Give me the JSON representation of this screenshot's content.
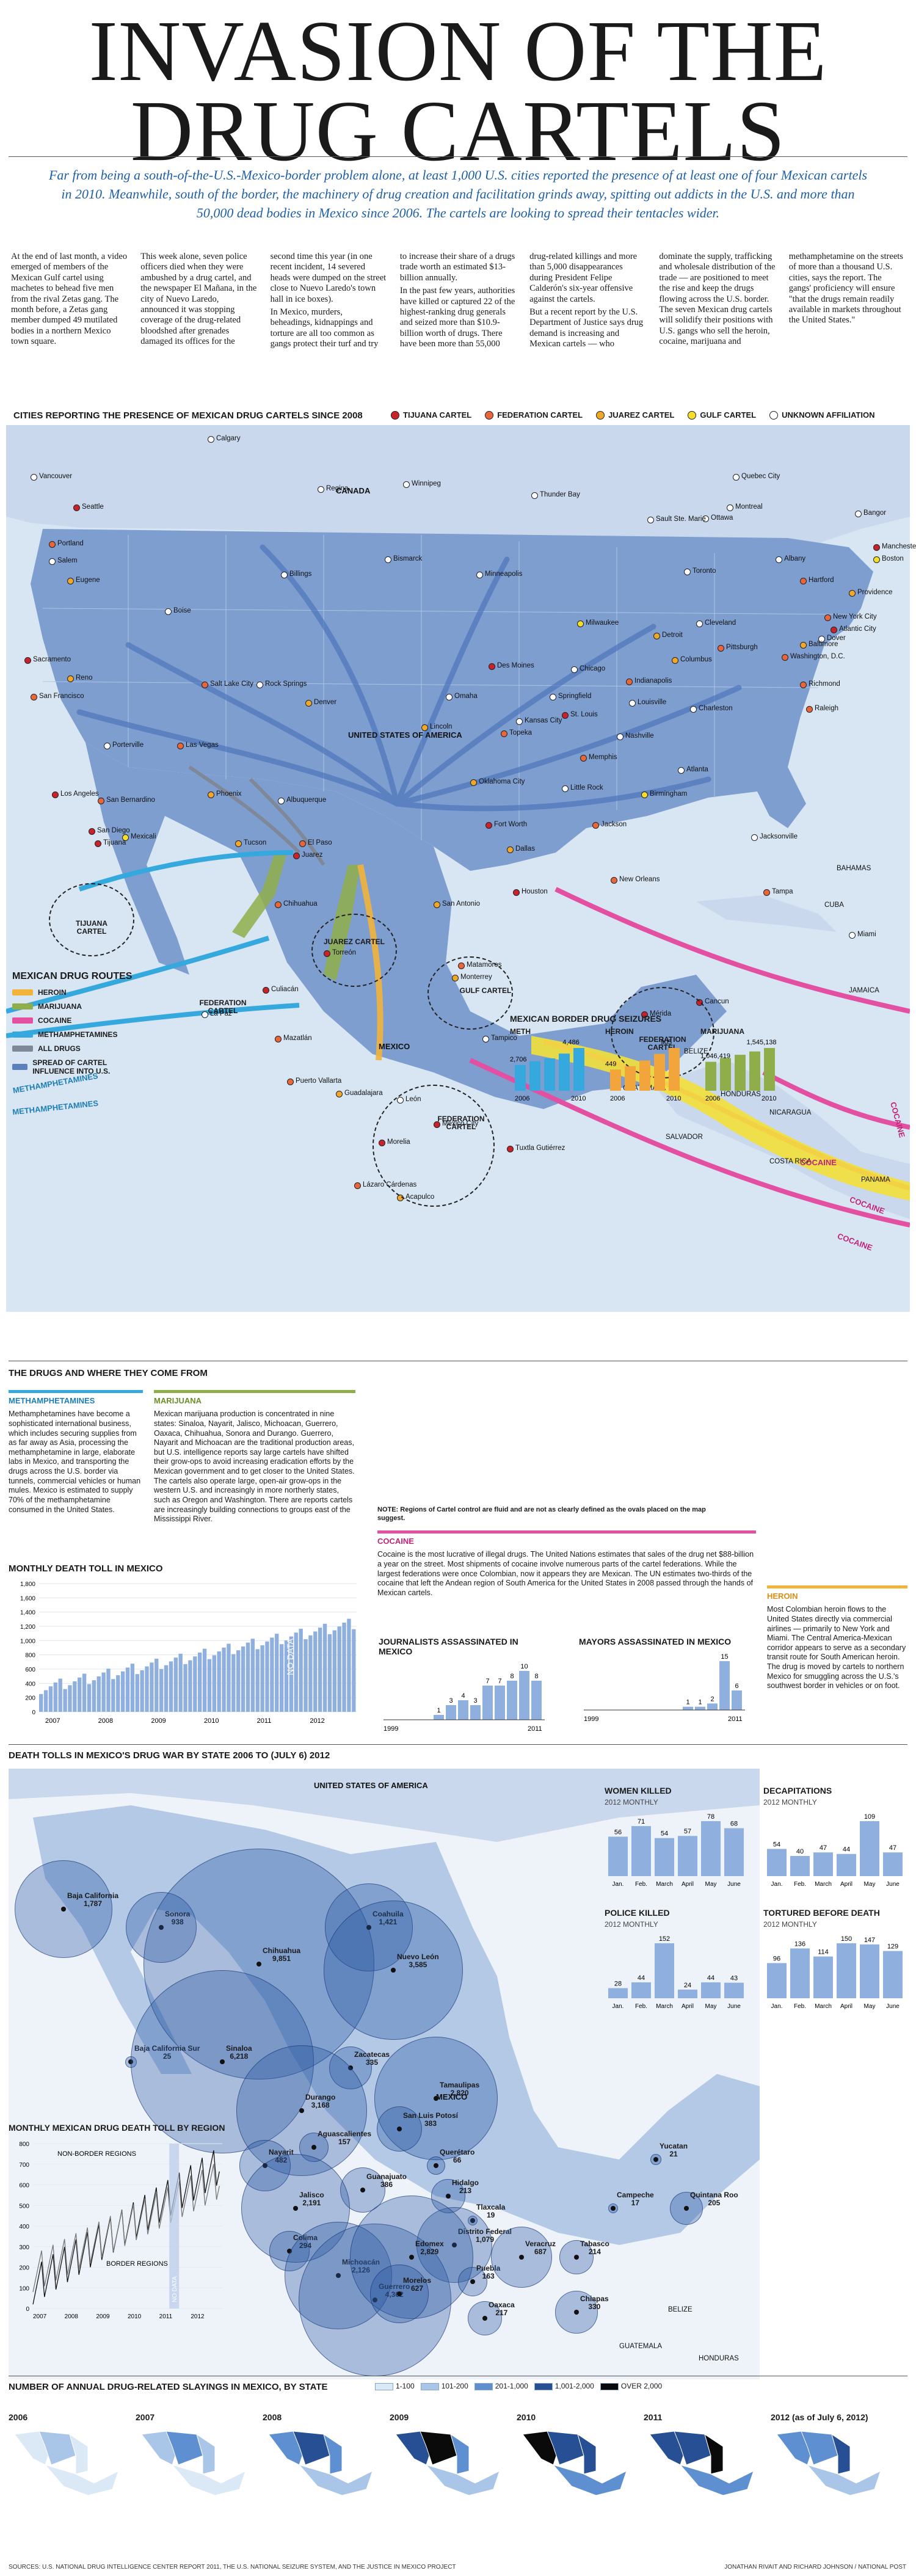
{
  "title_line1": "INVASION OF THE",
  "title_line2": "DRUG CARTELS",
  "subtitle": "Far from being a south-of-the-U.S.-Mexico-border problem alone, at least 1,000 U.S. cities reported the presence of at least one of four Mexican cartels in 2010. Meanwhile, south of the border, the machinery of drug creation and facilitation grinds away, spitting out addicts in the U.S. and more than 50,000 dead bodies in Mexico since 2006. The cartels are looking to spread their tentacles wider.",
  "intro_paragraphs": [
    "At the end of last month, a video emerged of members of the Mexican Gulf cartel using machetes to behead five men from the rival Zetas gang. The month before, a Zetas gang member dumped 49 mutilated bodies in a northern Mexico town square.",
    "This week alone, seven police officers died when they were ambushed by a drug cartel, and the newspaper El Mañana, in the city of Nuevo Laredo, announced it was stopping coverage of the drug-related bloodshed after grenades damaged its offices for the second time this year (in one recent incident, 14 severed heads were dumped on the street close to Nuevo Laredo's town hall in ice boxes).",
    "In Mexico, murders, beheadings, kidnappings and torture are all too common as gangs protect their turf and try to increase their share of a drugs trade worth an estimated $13-billion annually.",
    "In the past few years, authorities have killed or captured 22 of the highest-ranking drug generals and seized more than $10.9-billion worth of drugs. There have been more than 55,000 drug-related killings and more than 5,000 disappearances during President Felipe Calderón's six-year offensive against the cartels.",
    "But a recent report by the U.S. Department of Justice says drug demand is increasing and Mexican cartels — who dominate the supply, trafficking and wholesale distribution of the trade — are positioned to meet the rise and keep the drugs flowing across the U.S. border. The seven Mexican drug cartels will solidify their positions with U.S. gangs who sell the heroin, cocaine, marijuana and methamphetamine on the streets of more than a thousand U.S. cities, says the report. The gangs' proficiency will ensure \"that the drugs remain readily available in markets throughout the United States.\""
  ],
  "map": {
    "header": "CITIES REPORTING THE PRESENCE OF MEXICAN DRUG CARTELS SINCE 2008",
    "legend": [
      {
        "label": "TIJUANA CARTEL",
        "color": "#c8222a"
      },
      {
        "label": "FEDERATION CARTEL",
        "color": "#e8663a"
      },
      {
        "label": "JUAREZ CARTEL",
        "color": "#f0a82a"
      },
      {
        "label": "GULF CARTEL",
        "color": "#f6de2a"
      },
      {
        "label": "UNKNOWN AFFILIATION",
        "color": "#ffffff"
      }
    ],
    "countries": {
      "canada": "CANADA",
      "usa": "UNITED STATES OF AMERICA",
      "mexico": "MEXICO",
      "cuba": "CUBA",
      "bahamas": "BAHAMAS",
      "jamaica": "JAMAICA",
      "belize": "BELIZE",
      "guatemala": "GUATEMALA",
      "honduras": "HONDURAS",
      "salvador": "SALVADOR",
      "nicaragua": "NICARAGUA",
      "costa_rica": "COSTA RICA",
      "panama": "PANAMA"
    },
    "cities": [
      "Vancouver",
      "Calgary",
      "Regina",
      "Winnipeg",
      "Thunder Bay",
      "Quebec City",
      "Montreal",
      "Ottawa",
      "Bangor",
      "Sault Ste. Marie",
      "Seattle",
      "Portland",
      "Salem",
      "Eugene",
      "Boise",
      "Billings",
      "Bismarck",
      "Minneapolis",
      "Toronto",
      "Albany",
      "Hartford",
      "Providence",
      "Manchester",
      "Boston",
      "New York City",
      "Atlantic City",
      "Dover",
      "Baltimore",
      "Washington, D.C.",
      "Richmond",
      "Sacramento",
      "Reno",
      "San Francisco",
      "Rock Springs",
      "Salt Lake City",
      "Denver",
      "Omaha",
      "Des Moines",
      "Milwaukee",
      "Chicago",
      "Detroit",
      "Cleveland",
      "Pittsburgh",
      "Columbus",
      "Indianapolis",
      "Springfield",
      "Lincoln",
      "St. Louis",
      "Kansas City",
      "Topeka",
      "Louisville",
      "Charleston",
      "Raleigh",
      "Porterville",
      "Las Vegas",
      "Nashville",
      "Memphis",
      "Oklahoma City",
      "Little Rock",
      "Atlanta",
      "Birmingham",
      "Los Angeles",
      "San Bernardino",
      "San Diego",
      "Mexicali",
      "Tijuana",
      "Phoenix",
      "Albuquerque",
      "Tucson",
      "El Paso",
      "Juarez",
      "Fort Worth",
      "Dallas",
      "Jackson",
      "Jacksonville",
      "Houston",
      "New Orleans",
      "San Antonio",
      "Tampa",
      "Miami",
      "Chihuahua",
      "Torreón",
      "Matamoros",
      "Monterrey",
      "Culiacán",
      "La Paz",
      "Mazatlán",
      "Tampico",
      "Puerto Vallarta",
      "Guadalajara",
      "León",
      "Mexico City",
      "Morelia",
      "Lázaro Cárdenas",
      "Acapulco",
      "Tuxtla Gutiérrez",
      "Mérida",
      "Cancun"
    ],
    "cartels": {
      "tijuana": "TIJUANA CARTEL",
      "juarez": "JUAREZ CARTEL",
      "gulf": "GULF CARTEL",
      "federation1": "FEDERATION CARTEL",
      "federation2": "FEDERATION CARTEL",
      "federation3": "FEDERATION CARTEL"
    },
    "route_labels": [
      "METHAMPHETAMINES",
      "METHAMPHETAMINES",
      "COCAINE",
      "COCAINE",
      "COCAINE",
      "COCAINE"
    ]
  },
  "routes_legend": {
    "title": "MEXICAN DRUG ROUTES",
    "items": [
      {
        "label": "HEROIN",
        "color": "#f2b33a"
      },
      {
        "label": "MARIJUANA",
        "color": "#8fae4a"
      },
      {
        "label": "COCAINE",
        "color": "#e34fa1"
      },
      {
        "label": "METHAMPHETAMINES",
        "color": "#35a9dd"
      },
      {
        "label": "ALL DRUGS",
        "color": "#7f8899"
      },
      {
        "label": "SPREAD OF CARTEL INFLUENCE INTO U.S.",
        "color": "#5c7fbd"
      }
    ]
  },
  "seizures": {
    "title": "MEXICAN BORDER DRUG SEIZURES",
    "groups": [
      {
        "label": "METH",
        "first": "2,706",
        "last": "4,486",
        "values": [
          2706,
          3100,
          3400,
          3900,
          4486
        ],
        "color": "#35a9dd"
      },
      {
        "label": "HEROIN",
        "first": "449",
        "last": "905",
        "values": [
          449,
          520,
          640,
          780,
          905
        ],
        "color": "#f2a53a"
      },
      {
        "label": "MARIJUANA",
        "first": "1,046,419",
        "last": "1,545,138",
        "values": [
          1046419,
          1180000,
          1300000,
          1420000,
          1545138
        ],
        "color": "#8fae4a"
      }
    ],
    "years": [
      "2006",
      "2010"
    ]
  },
  "drugs": {
    "title": "THE DRUGS AND WHERE THEY COME FROM",
    "meth_title": "METHAMPHETAMINES",
    "meth_text": "Methamphetamines have become a sophisticated international business, which includes securing supplies from as far away as Asia, processing the methamphetamine in large, elaborate labs in Mexico, and transporting the drugs across the U.S. border via tunnels, commercial vehicles or human mules. Mexico is estimated to supply 70% of the methamphetamine consumed in the United States.",
    "mari_title": "MARIJUANA",
    "mari_text": "Mexican marijuana production is concentrated in nine states: Sinaloa, Nayarit, Jalisco, Michoacan, Guerrero, Oaxaca, Chihuahua, Sonora and Durango. Guerrero, Nayarit and Michoacan are the traditional production areas, but U.S. intelligence reports say large cartels have shifted their grow-ops to avoid increasing eradication efforts by the Mexican government and to get closer to the United States. The cartels also operate large, open-air grow-ops in the western U.S. and increasingly in more northerly states, such as Oregon and Washington. There are reports cartels are increasingly building connections to groups east of the Mississippi River.",
    "note": "NOTE: Regions of Cartel control are fluid and are not as clearly defined as the ovals placed on the map suggest.",
    "cocaine_title": "COCAINE",
    "cocaine_text": "Cocaine is the most lucrative of illegal drugs. The United Nations estimates that sales of the drug net $88-billion a year on the street. Most shipments of cocaine involve numerous parts of the cartel federations. While the largest federations were once Colombian, now it appears they are Mexican. The UN estimates two-thirds of the cocaine that left the Andean region of South America for the United States in 2008 passed through the hands of Mexican cartels.",
    "heroin_title": "HEROIN",
    "heroin_text": "Most Colombian heroin flows to the United States directly via commercial airlines — primarily to New York and Miami. The Central America-Mexican corridor appears to serve as a secondary transit route for South American heroin. The drug is moved by cartels to northern Mexico for smuggling across the U.S.'s southwest border in vehicles or on foot."
  },
  "monthly_death": {
    "title": "MONTHLY DEATH TOLL IN MEXICO",
    "y_ticks": [
      "1,800",
      "1,600",
      "1,400",
      "1,200",
      "1,000",
      "800",
      "600",
      "400",
      "200",
      "0"
    ],
    "x_labels": [
      "2007",
      "2008",
      "2009",
      "2010",
      "2011",
      "2012"
    ],
    "no_data": "NO DATA"
  },
  "journalists": {
    "title": "JOURNALISTS ASSASSINATED IN MEXICO",
    "labels": [
      "1",
      "3",
      "4",
      "3",
      "7",
      "7",
      "8",
      "10",
      "8"
    ],
    "x_start": "1999",
    "x_end": "2011"
  },
  "mayors": {
    "title": "MAYORS ASSASSINATED IN MEXICO",
    "labels": [
      "1",
      "1",
      "2",
      "15",
      "6"
    ],
    "x_start": "1999",
    "x_end": "2011"
  },
  "death_tolls": {
    "title": "DEATH TOLLS IN MEXICO'S DRUG WAR BY STATE 2006 TO (JULY 6) 2012",
    "usa_label": "UNITED STATES OF AMERICA",
    "mexico_label": "MEXICO",
    "belize_label": "BELIZE",
    "guatemala_label": "GUATEMALA",
    "honduras_label": "HONDURAS",
    "states": [
      {
        "name": "Baja California",
        "value": "1,787"
      },
      {
        "name": "Sonora",
        "value": "938"
      },
      {
        "name": "Chihuahua",
        "value": "9,851"
      },
      {
        "name": "Coahuila",
        "value": "1,421"
      },
      {
        "name": "Nuevo León",
        "value": "3,585"
      },
      {
        "name": "Baja California Sur",
        "value": "25"
      },
      {
        "name": "Sinaloa",
        "value": "6,218"
      },
      {
        "name": "Zacatecas",
        "value": "335"
      },
      {
        "name": "Durango",
        "value": "3,168"
      },
      {
        "name": "Tamaulipas",
        "value": "2,820"
      },
      {
        "name": "San Luis Potosí",
        "value": "383"
      },
      {
        "name": "Querétaro",
        "value": "66"
      },
      {
        "name": "Hidalgo",
        "value": "213"
      },
      {
        "name": "Tlaxcala",
        "value": "19"
      },
      {
        "name": "Distrito Federal",
        "value": "1,079"
      },
      {
        "name": "Aguascalientes",
        "value": "157"
      },
      {
        "name": "Nayarit",
        "value": "482"
      },
      {
        "name": "Guanajuato",
        "value": "386"
      },
      {
        "name": "Jalisco",
        "value": "2,191"
      },
      {
        "name": "Colima",
        "value": "294"
      },
      {
        "name": "Michoacán",
        "value": "2,126"
      },
      {
        "name": "Guerrero",
        "value": "4,362"
      },
      {
        "name": "Edomex",
        "value": "2,829"
      },
      {
        "name": "Morelos",
        "value": "627"
      },
      {
        "name": "Puebla",
        "value": "163"
      },
      {
        "name": "Oaxaca",
        "value": "217"
      },
      {
        "name": "Veracruz",
        "value": "687"
      },
      {
        "name": "Chiapas",
        "value": "330"
      },
      {
        "name": "Campeche",
        "value": "17"
      },
      {
        "name": "Tabasco",
        "value": "214"
      },
      {
        "name": "Yucatan",
        "value": "21"
      },
      {
        "name": "Quintana Roo",
        "value": "205"
      }
    ]
  },
  "region_toll": {
    "title": "MONTHLY MEXICAN DRUG DEATH TOLL BY REGION",
    "non_border": "NON-BORDER REGIONS",
    "border": "BORDER REGIONS",
    "no_data": "NO DATA",
    "y_ticks": [
      "800",
      "700",
      "600",
      "500",
      "400",
      "300",
      "200",
      "100",
      "0"
    ],
    "x_labels": [
      "2007",
      "2008",
      "2009",
      "2010",
      "2011",
      "2012"
    ]
  },
  "monthly_small": [
    {
      "title": "WOMEN KILLED",
      "sub": "2012 MONTHLY",
      "labels": [
        "56",
        "71",
        "54",
        "57",
        "78",
        "68"
      ]
    },
    {
      "title": "DECAPITATIONS",
      "sub": "2012 MONTHLY",
      "labels": [
        "54",
        "40",
        "47",
        "44",
        "109",
        "47"
      ]
    },
    {
      "title": "POLICE KILLED",
      "sub": "2012 MONTHLY",
      "labels": [
        "28",
        "44",
        "152",
        "24",
        "44",
        "43"
      ]
    },
    {
      "title": "TORTURED BEFORE DEATH",
      "sub": "2012 MONTHLY",
      "labels": [
        "96",
        "136",
        "114",
        "150",
        "147",
        "129"
      ]
    }
  ],
  "months": [
    "Jan.",
    "Feb.",
    "March",
    "April",
    "May",
    "June"
  ],
  "annual": {
    "title": "NUMBER OF ANNUAL DRUG-RELATED SLAYINGS IN MEXICO, BY STATE",
    "legend": [
      {
        "label": "1-100",
        "color": "#dbe8f6"
      },
      {
        "label": "101-200",
        "color": "#a9c6e8"
      },
      {
        "label": "201-1,000",
        "color": "#5e8fd0"
      },
      {
        "label": "1,001-2,000",
        "color": "#274f93"
      },
      {
        "label": "OVER 2,000",
        "color": "#0a0a0a"
      }
    ],
    "years": [
      "2006",
      "2007",
      "2008",
      "2009",
      "2010",
      "2011",
      "2012 (as of July 6, 2012)"
    ]
  },
  "sources": "SOURCES: U.S. NATIONAL DRUG INTELLIGENCE CENTER REPORT 2011, THE U.S. NATIONAL SEIZURE SYSTEM, AND THE JUSTICE IN MEXICO PROJECT",
  "credit": "JONATHAN RIVAIT AND RICHARD JOHNSON / NATIONAL POST"
}
